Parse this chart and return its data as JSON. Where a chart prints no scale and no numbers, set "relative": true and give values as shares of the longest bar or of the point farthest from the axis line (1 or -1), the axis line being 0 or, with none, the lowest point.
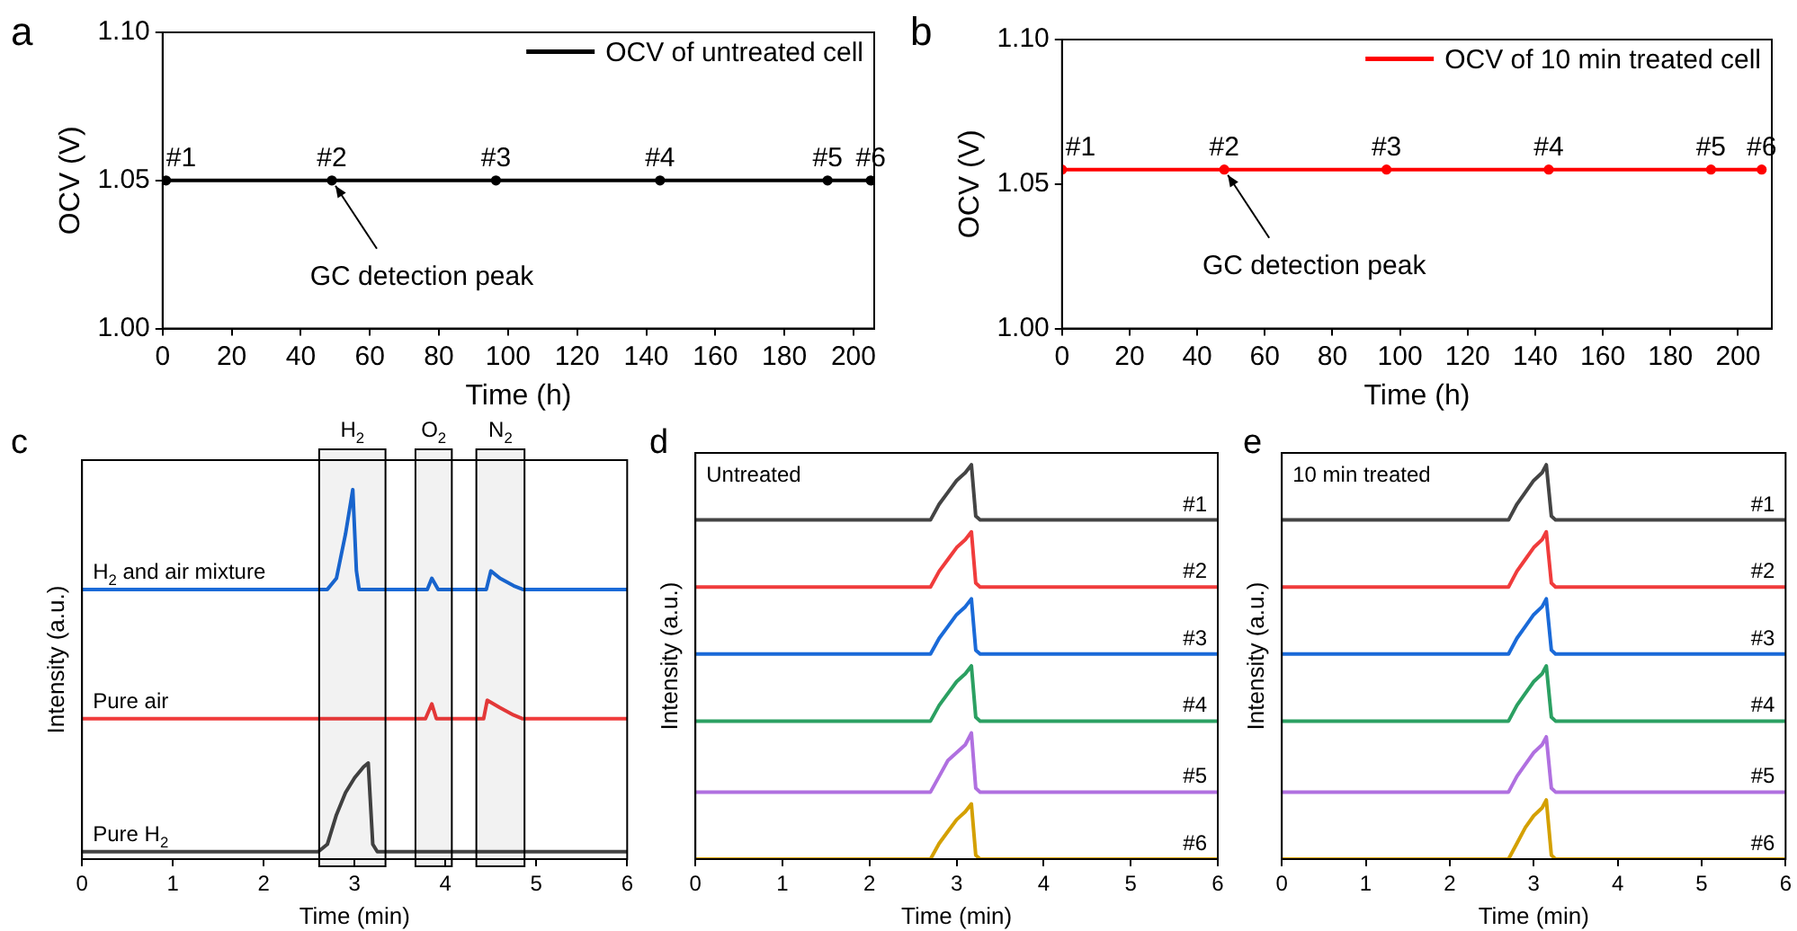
{
  "chart_data": [
    {
      "type": "line",
      "title": "a",
      "xlabel": "Time (h)",
      "ylabel": "OCV (V)",
      "xlim": [
        0,
        206
      ],
      "xticks": [
        0,
        20,
        40,
        60,
        80,
        100,
        120,
        140,
        160,
        180,
        200
      ],
      "ylim": [
        1.0,
        1.1
      ],
      "yticks": [
        {
          "value": 1.0,
          "label": "1.00"
        },
        {
          "value": 1.05,
          "label": "1.05"
        },
        {
          "value": 1.1,
          "label": "1.10"
        }
      ],
      "legend": "top right",
      "marker": "circle",
      "x": [
        1,
        49,
        96.5,
        144,
        192.5,
        205
      ],
      "series": [
        {
          "name": "OCV of untreated cell",
          "color": "#000000",
          "values": [
            1.05,
            1.05,
            1.05,
            1.05,
            1.05,
            1.05
          ]
        }
      ],
      "annotations": [
        {
          "text": "#1",
          "x": 1,
          "y": 1.05
        },
        {
          "text": "#2",
          "x": 49,
          "y": 1.05
        },
        {
          "text": "#3",
          "x": 96.5,
          "y": 1.05
        },
        {
          "text": "#4",
          "x": 144,
          "y": 1.05
        },
        {
          "text": "#5",
          "x": 192.5,
          "y": 1.05
        },
        {
          "text": "#6",
          "x": 205,
          "y": 1.05
        },
        {
          "text": "GC detection peak",
          "x": 49,
          "y": 1.05
        }
      ]
    },
    {
      "type": "line",
      "title": "b",
      "xlabel": "Time (h)",
      "ylabel": "OCV (V)",
      "xlim": [
        0,
        210
      ],
      "xticks": [
        0,
        20,
        40,
        60,
        80,
        100,
        120,
        140,
        160,
        180,
        200
      ],
      "ylim": [
        1.0,
        1.1
      ],
      "yticks": [
        {
          "value": 1.0,
          "label": "1.00"
        },
        {
          "value": 1.05,
          "label": "1.05"
        },
        {
          "value": 1.1,
          "label": "1.10"
        }
      ],
      "legend": "top right",
      "marker": "circle",
      "x": [
        0,
        48,
        96,
        144,
        192,
        207
      ],
      "series": [
        {
          "name": "OCV of 10 min treated cell",
          "color": "#ff0000",
          "values": [
            1.055,
            1.055,
            1.055,
            1.055,
            1.055,
            1.055
          ]
        }
      ],
      "annotations": [
        {
          "text": "#1",
          "x": 0,
          "y": 1.055
        },
        {
          "text": "#2",
          "x": 48,
          "y": 1.055
        },
        {
          "text": "#3",
          "x": 96,
          "y": 1.055
        },
        {
          "text": "#4",
          "x": 144,
          "y": 1.055
        },
        {
          "text": "#5",
          "x": 192,
          "y": 1.055
        },
        {
          "text": "#6",
          "x": 207,
          "y": 1.055
        },
        {
          "text": "GC detection peak",
          "x": 48,
          "y": 1.055
        }
      ]
    },
    {
      "type": "line",
      "title": "c",
      "xlabel": "Time (min)",
      "ylabel": "Intensity (a.u.)",
      "relative": true,
      "xlim": [
        0,
        6
      ],
      "xticks": [
        0,
        1,
        2,
        3,
        4,
        5,
        6
      ],
      "bands": [
        {
          "axis": "x",
          "from": 2.61,
          "to": 3.34,
          "label": "H$_{2}$"
        },
        {
          "axis": "x",
          "from": 3.67,
          "to": 4.07,
          "label": "O$_{2}$"
        },
        {
          "axis": "x",
          "from": 4.34,
          "to": 4.87,
          "label": "N$_{2}$"
        }
      ],
      "series": [
        {
          "name": "H$_{2}$ and air mixture",
          "color": "#1a6ad8",
          "x": [
            0,
            2.7,
            2.8,
            2.9,
            2.98,
            3.02,
            3.05,
            3.8,
            3.85,
            3.92,
            4.45,
            4.5,
            4.6,
            4.75,
            4.85,
            6
          ],
          "values": [
            0.73,
            0.73,
            0.76,
            0.88,
            1,
            0.78,
            0.73,
            0.73,
            0.76,
            0.73,
            0.73,
            0.78,
            0.76,
            0.74,
            0.73,
            0.73
          ]
        },
        {
          "name": "Pure air",
          "color": "#f03c3c",
          "x": [
            0,
            3.78,
            3.85,
            3.9,
            4.42,
            4.46,
            4.6,
            4.75,
            4.85,
            6
          ],
          "values": [
            0.38,
            0.38,
            0.42,
            0.38,
            0.38,
            0.43,
            0.41,
            0.39,
            0.38,
            0.38
          ]
        },
        {
          "name": "Pure H$_{2}$",
          "color": "#444444",
          "x": [
            0,
            2.6,
            2.7,
            2.8,
            2.9,
            3.0,
            3.1,
            3.15,
            3.2,
            3.25,
            6
          ],
          "values": [
            0.02,
            0.02,
            0.04,
            0.12,
            0.18,
            0.22,
            0.25,
            0.26,
            0.04,
            0.02,
            0.02
          ]
        }
      ]
    },
    {
      "type": "line",
      "title": "d",
      "xlabel": "Time (min)",
      "ylabel": "Intensity (a.u.)",
      "relative": true,
      "xlim": [
        0,
        6
      ],
      "xticks": [
        0,
        1,
        2,
        3,
        4,
        5,
        6
      ],
      "annotations": [
        "Untreated"
      ],
      "x": [
        0,
        2.7,
        2.8,
        2.9,
        3.0,
        3.1,
        3.17,
        3.22,
        3.27,
        6
      ],
      "series": [
        {
          "name": "#1",
          "color": "#444444",
          "values": [
            0.86,
            0.86,
            0.9,
            0.93,
            0.96,
            0.98,
            1,
            0.87,
            0.86,
            0.86
          ]
        },
        {
          "name": "#2",
          "color": "#f03c3c",
          "values": [
            0.69,
            0.69,
            0.73,
            0.76,
            0.79,
            0.81,
            0.83,
            0.7,
            0.69,
            0.69
          ]
        },
        {
          "name": "#3",
          "color": "#1a6ad8",
          "values": [
            0.52,
            0.52,
            0.56,
            0.59,
            0.62,
            0.64,
            0.66,
            0.53,
            0.52,
            0.52
          ]
        },
        {
          "name": "#4",
          "color": "#2ba062",
          "values": [
            0.35,
            0.35,
            0.39,
            0.42,
            0.45,
            0.47,
            0.49,
            0.36,
            0.35,
            0.35
          ]
        },
        {
          "name": "#5",
          "color": "#b070e0",
          "values": [
            0.17,
            0.17,
            0.21,
            0.25,
            0.27,
            0.29,
            0.32,
            0.18,
            0.17,
            0.17
          ]
        },
        {
          "name": "#6",
          "color": "#d4a000",
          "values": [
            0,
            0,
            0.04,
            0.07,
            0.1,
            0.12,
            0.14,
            0.01,
            0,
            0
          ]
        }
      ]
    },
    {
      "type": "line",
      "title": "e",
      "xlabel": "Time (min)",
      "ylabel": "Intensity (a.u.)",
      "relative": true,
      "xlim": [
        0,
        6
      ],
      "xticks": [
        0,
        1,
        2,
        3,
        4,
        5,
        6
      ],
      "annotations": [
        "10 min treated"
      ],
      "x": [
        0,
        2.7,
        2.8,
        2.9,
        3.0,
        3.1,
        3.15,
        3.21,
        3.26,
        6
      ],
      "series": [
        {
          "name": "#1",
          "color": "#444444",
          "values": [
            0.86,
            0.86,
            0.9,
            0.93,
            0.96,
            0.98,
            1,
            0.87,
            0.86,
            0.86
          ]
        },
        {
          "name": "#2",
          "color": "#f03c3c",
          "values": [
            0.69,
            0.69,
            0.73,
            0.76,
            0.79,
            0.81,
            0.83,
            0.7,
            0.69,
            0.69
          ]
        },
        {
          "name": "#3",
          "color": "#1a6ad8",
          "values": [
            0.52,
            0.52,
            0.56,
            0.59,
            0.62,
            0.64,
            0.66,
            0.53,
            0.52,
            0.52
          ]
        },
        {
          "name": "#4",
          "color": "#2ba062",
          "values": [
            0.35,
            0.35,
            0.39,
            0.42,
            0.45,
            0.47,
            0.49,
            0.36,
            0.35,
            0.35
          ]
        },
        {
          "name": "#5",
          "color": "#b070e0",
          "values": [
            0.17,
            0.17,
            0.21,
            0.24,
            0.27,
            0.29,
            0.31,
            0.18,
            0.17,
            0.17
          ]
        },
        {
          "name": "#6",
          "color": "#d4a000",
          "values": [
            0,
            0,
            0.04,
            0.08,
            0.11,
            0.13,
            0.15,
            0.01,
            0,
            0
          ]
        }
      ]
    }
  ]
}
